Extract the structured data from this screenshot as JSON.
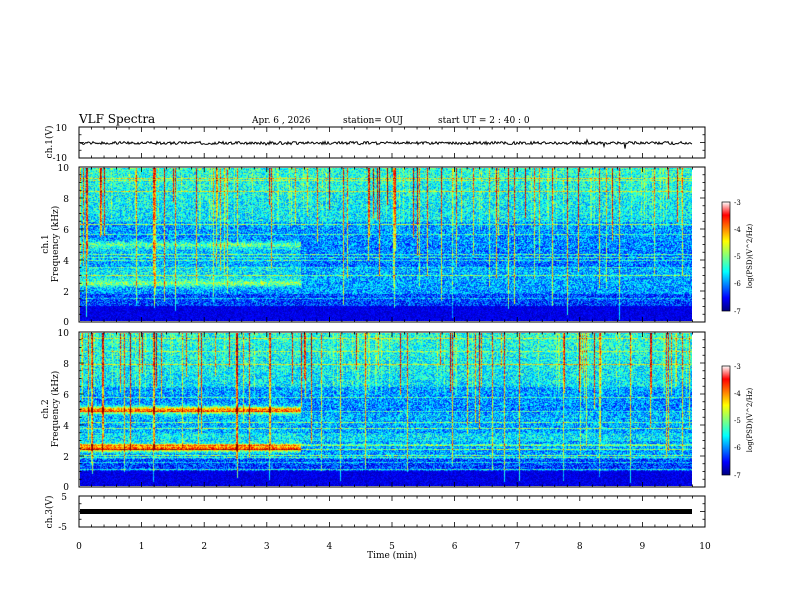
{
  "header": {
    "title": "VLF Spectra",
    "date": "Apr. 6 , 2026",
    "station": "station= OUJ",
    "start": "start  UT =  2 : 40 : 0"
  },
  "chart_data": [
    {
      "id": "ch1_waveform",
      "type": "line",
      "ylabel": "ch.1(V)",
      "ylim": [
        -10,
        10
      ],
      "ytick_labels": [
        "10",
        "-10"
      ],
      "baseline_value": 0
    },
    {
      "id": "ch1_spectrogram",
      "type": "heatmap",
      "ylabel": "ch.1\nFrequency (kHz)",
      "ylabel_lines": [
        "ch.1",
        "Frequency (kHz)"
      ],
      "ylim": [
        0,
        10
      ],
      "ytick_labels": [
        "0",
        "2",
        "4",
        "6",
        "8",
        "10"
      ],
      "bands_before_min": 3.55,
      "bands_khz": [
        2.5,
        5.0
      ],
      "colorbar": {
        "label": "log(PSD)(V^2/Hz)",
        "range": [
          -7,
          -3
        ],
        "tick_labels": [
          "-3",
          "-4",
          "-5",
          "-6",
          "-7"
        ]
      }
    },
    {
      "id": "ch2_spectrogram",
      "type": "heatmap",
      "ylabel": "ch.2\nFrequency (kHz)",
      "ylabel_lines": [
        "ch.2",
        "Frequency (kHz)"
      ],
      "ylim": [
        0,
        10
      ],
      "ytick_labels": [
        "0",
        "2",
        "4",
        "6",
        "8",
        "10"
      ],
      "bands_before_min": 3.55,
      "bands_khz": [
        2.5,
        5.0
      ],
      "colorbar": {
        "label": "log(PSD)(V^2/Hz)",
        "range": [
          -7,
          -3
        ],
        "tick_labels": [
          "-3",
          "-4",
          "-5",
          "-6",
          "-7"
        ]
      }
    },
    {
      "id": "ch3_waveform",
      "type": "line",
      "ylabel": "ch.3(V)",
      "ylim": [
        -5,
        5
      ],
      "ytick_labels": [
        "5",
        "-5"
      ],
      "baseline_value": 0
    }
  ],
  "x_axis": {
    "label": "Time  (min)",
    "range": [
      0,
      10
    ],
    "data_end": 9.85,
    "tick_labels": [
      "0",
      "1",
      "2",
      "3",
      "4",
      "5",
      "6",
      "7",
      "8",
      "9",
      "10"
    ]
  }
}
